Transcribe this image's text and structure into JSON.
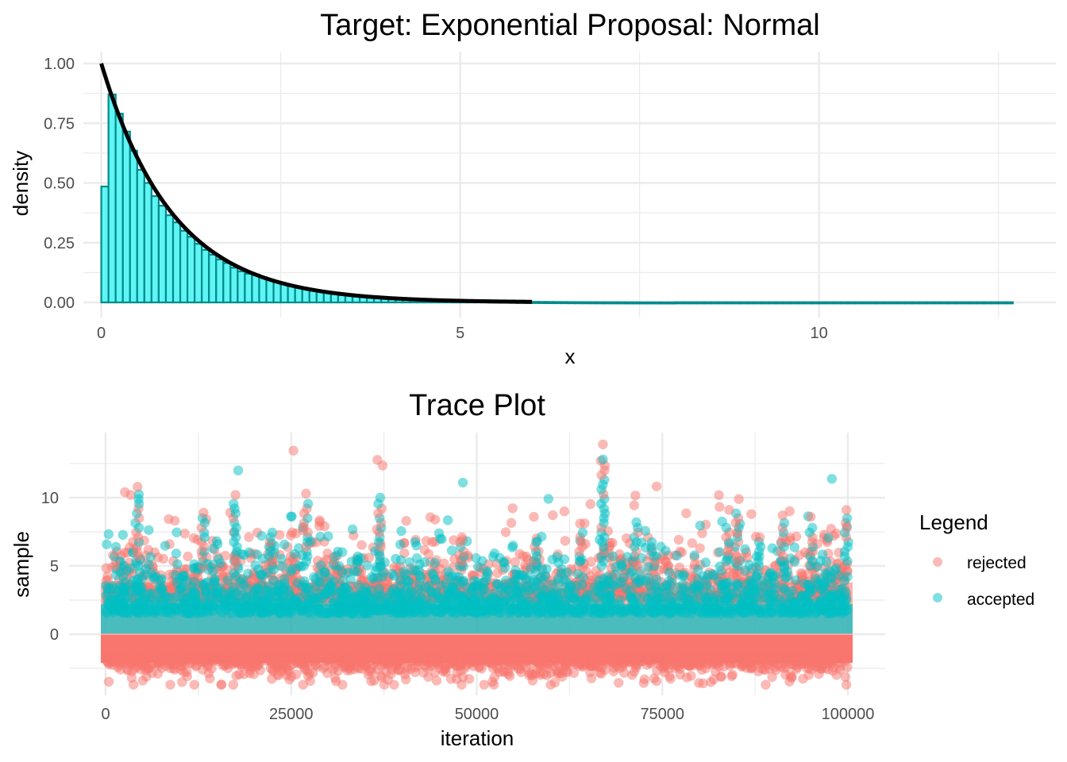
{
  "chart_data": [
    {
      "type": "histogram",
      "title": "Target:  Exponential  Proposal:  Normal",
      "xlabel": "x",
      "ylabel": "density",
      "xlim": [
        -0.25,
        13.3
      ],
      "ylim": [
        0,
        1.0
      ],
      "x_ticks": [
        0,
        5,
        10
      ],
      "x_tick_labels": [
        "0",
        "5",
        "10"
      ],
      "y_ticks": [
        0,
        0.25,
        0.5,
        0.75,
        1.0
      ],
      "y_tick_labels": [
        "0.00",
        "0.25",
        "0.50",
        "0.75",
        "1.00"
      ],
      "grid": true,
      "bin_width": 0.1,
      "bin_start": 0,
      "bin_end": 12.7,
      "bins_head": [
        0.485,
        0.87,
        0.79,
        0.715,
        0.635,
        0.555,
        0.5,
        0.445,
        0.405,
        0.365,
        0.335,
        0.3,
        0.275,
        0.245,
        0.22,
        0.2,
        0.18,
        0.165,
        0.145,
        0.13,
        0.12
      ],
      "bins_tail_rate": 1.0,
      "fill_color": "#5ff5f5",
      "outline_color": "#008b8b",
      "density_curve": {
        "function": "exp(-x)",
        "x_range": [
          0,
          6
        ],
        "color": "#000000"
      }
    },
    {
      "type": "scatter",
      "title": "Trace Plot",
      "xlabel": "iteration",
      "ylabel": "sample",
      "xlim": [
        -5000,
        105000
      ],
      "ylim": [
        -4,
        14.5
      ],
      "x_ticks": [
        0,
        25000,
        50000,
        75000,
        100000
      ],
      "x_tick_labels": [
        "0",
        "25000",
        "50000",
        "75000",
        "100000"
      ],
      "y_ticks": [
        0,
        5,
        10
      ],
      "y_tick_labels": [
        "0",
        "5",
        "10"
      ],
      "grid": true,
      "n_iterations": 100000,
      "legend": {
        "title": "Legend",
        "position": "right",
        "entries": [
          {
            "label": "rejected",
            "color": "#f8766d"
          },
          {
            "label": "accepted",
            "color": "#00bfc4"
          }
        ]
      },
      "notable_points": [
        {
          "x": 67000,
          "y": 13.9,
          "series": "rejected"
        },
        {
          "x": 67000,
          "y": 12.8,
          "series": "accepted"
        },
        {
          "x": 4300,
          "y": 10.8,
          "series": "rejected"
        },
        {
          "x": 2600,
          "y": 10.4,
          "series": "rejected"
        },
        {
          "x": 27000,
          "y": 10.3,
          "series": "rejected"
        },
        {
          "x": 17500,
          "y": 10.2,
          "series": "rejected"
        },
        {
          "x": 37000,
          "y": 10.0,
          "series": "accepted"
        },
        {
          "x": 85300,
          "y": 9.9,
          "series": "rejected"
        },
        {
          "x": 99800,
          "y": 9.1,
          "series": "rejected"
        },
        {
          "x": 61800,
          "y": 9.0,
          "series": "rejected"
        },
        {
          "x": 84000,
          "y": 9.1,
          "series": "rejected"
        },
        {
          "x": 13200,
          "y": 8.9,
          "series": "rejected"
        },
        {
          "x": 87000,
          "y": 8.8,
          "series": "rejected"
        },
        {
          "x": 91200,
          "y": 8.7,
          "series": "rejected"
        },
        {
          "x": 44400,
          "y": 8.4,
          "series": "rejected"
        },
        {
          "x": 71500,
          "y": 8.2,
          "series": "accepted"
        },
        {
          "x": 95000,
          "y": 8.6,
          "series": "rejected"
        },
        {
          "x": 40500,
          "y": 8.3,
          "series": "rejected"
        },
        {
          "x": 57700,
          "y": 8.6,
          "series": "rejected"
        },
        {
          "x": 10300,
          "y": -3.5,
          "series": "rejected"
        },
        {
          "x": 80500,
          "y": -3.6,
          "series": "rejected"
        },
        {
          "x": 36200,
          "y": -3.4,
          "series": "rejected"
        },
        {
          "x": 44600,
          "y": -3.4,
          "series": "rejected"
        },
        {
          "x": 5000,
          "y": -3.4,
          "series": "rejected"
        }
      ]
    }
  ]
}
